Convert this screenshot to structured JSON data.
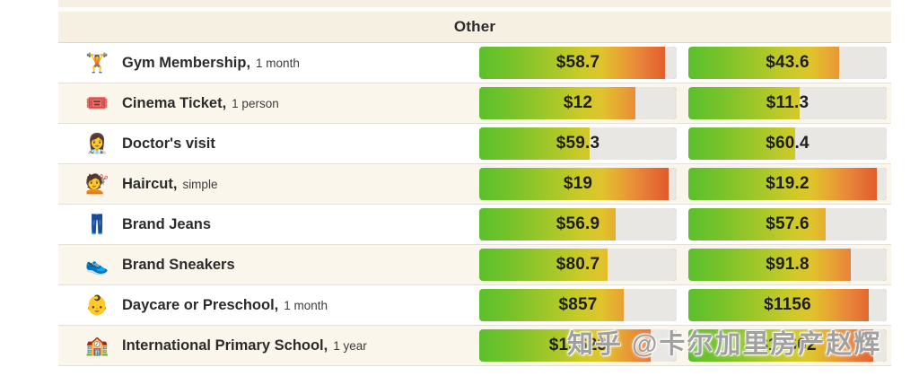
{
  "header": {
    "title": "Other"
  },
  "watermark": {
    "text": "知乎 @卡尔加里房产赵辉"
  },
  "colors": {
    "page_background": "#ffffff",
    "band_cream": "#f6f0e2",
    "row_white": "#ffffff",
    "row_cream": "#fbf6ec",
    "row_border": "#e2e0da",
    "track_gray": "#e9e7e3",
    "bar_gradient_start": "#5ac02c",
    "bar_gradient_mid": "#e0c42c",
    "bar_gradient_end": "#dc5127",
    "text_dark": "#2b2b2b",
    "watermark_gray": "#a0a0a0"
  },
  "rows": [
    {
      "icon": "🏋️",
      "icon_name": "weightlifter-icon",
      "name": "Gym Membership,",
      "qualifier": "1 month",
      "left": {
        "value": "$58.7",
        "fill_pct": 94
      },
      "right": {
        "value": "$43.6",
        "fill_pct": 76
      }
    },
    {
      "icon": "🎟️",
      "icon_name": "admission-ticket-icon",
      "name": "Cinema Ticket,",
      "qualifier": "1 person",
      "left": {
        "value": "$12",
        "fill_pct": 79
      },
      "right": {
        "value": "$11.3",
        "fill_pct": 56
      }
    },
    {
      "icon": "👩‍⚕️",
      "icon_name": "woman-health-worker-icon",
      "name": "Doctor's visit",
      "qualifier": "",
      "left": {
        "value": "$59.3",
        "fill_pct": 56
      },
      "right": {
        "value": "$60.4",
        "fill_pct": 54
      }
    },
    {
      "icon": "💇",
      "icon_name": "haircut-icon",
      "name": "Haircut,",
      "qualifier": "simple",
      "left": {
        "value": "$19",
        "fill_pct": 96
      },
      "right": {
        "value": "$19.2",
        "fill_pct": 95
      }
    },
    {
      "icon": "👖",
      "icon_name": "jeans-icon",
      "name": "Brand Jeans",
      "qualifier": "",
      "left": {
        "value": "$56.9",
        "fill_pct": 69
      },
      "right": {
        "value": "$57.6",
        "fill_pct": 69
      }
    },
    {
      "icon": "👟",
      "icon_name": "running-shoe-icon",
      "name": "Brand Sneakers",
      "qualifier": "",
      "left": {
        "value": "$80.7",
        "fill_pct": 65
      },
      "right": {
        "value": "$91.8",
        "fill_pct": 82
      }
    },
    {
      "icon": "👶",
      "icon_name": "baby-icon",
      "name": "Daycare or Preschool,",
      "qualifier": "1 month",
      "left": {
        "value": "$857",
        "fill_pct": 73
      },
      "right": {
        "value": "$1156",
        "fill_pct": 91
      }
    },
    {
      "icon": "🏫",
      "icon_name": "school-icon",
      "name": "International Primary School,",
      "qualifier": "1 year",
      "left": {
        "value": "$15623",
        "fill_pct": 87
      },
      "right": {
        "value": "$19602",
        "fill_pct": 93
      }
    }
  ],
  "chart_data": {
    "type": "bar",
    "title": "Other",
    "orientation": "horizontal",
    "categories": [
      "Gym Membership, 1 month",
      "Cinema Ticket, 1 person",
      "Doctor's visit",
      "Haircut, simple",
      "Brand Jeans",
      "Brand Sneakers",
      "Daycare or Preschool, 1 month",
      "International Primary School, 1 year"
    ],
    "series": [
      {
        "name": "left-column",
        "values": [
          58.7,
          12,
          59.3,
          19,
          56.9,
          80.7,
          857,
          15623
        ],
        "labels": [
          "$58.7",
          "$12",
          "$59.3",
          "$19",
          "$56.9",
          "$80.7",
          "$857",
          "$15623"
        ],
        "fill_pct": [
          94,
          79,
          56,
          96,
          69,
          65,
          73,
          87
        ]
      },
      {
        "name": "right-column",
        "values": [
          43.6,
          11.3,
          60.4,
          19.2,
          57.6,
          91.8,
          1156,
          19602
        ],
        "labels": [
          "$43.6",
          "$11.3",
          "$60.4",
          "$19.2",
          "$57.6",
          "$91.8",
          "$1156",
          "$19602"
        ],
        "fill_pct": [
          76,
          56,
          54,
          95,
          69,
          82,
          91,
          93
        ]
      }
    ],
    "value_label_position": "center-of-track",
    "bar_style": "green-to-red gradient fill over gray track",
    "legend": "none",
    "grid": false
  }
}
